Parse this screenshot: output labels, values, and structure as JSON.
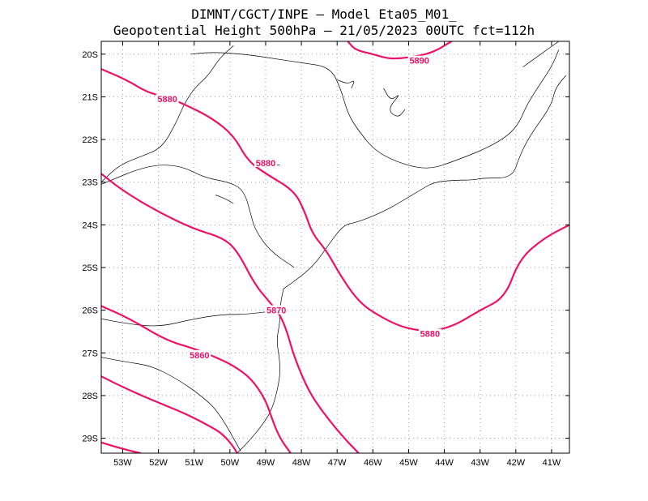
{
  "title": {
    "line1": "DIMNT/CGCT/INPE –   Model Eta05_M01_",
    "line2": "Geopotential Height 500hPa –  21/05/2023 00UTC fct=112h"
  },
  "colors": {
    "contour": "#ee1166",
    "coast": "#000000",
    "grid": "#a0a0a0"
  },
  "axes": {
    "lon_labels": [
      "53W",
      "52W",
      "51W",
      "50W",
      "49W",
      "48W",
      "47W",
      "46W",
      "45W",
      "44W",
      "43W",
      "42W",
      "41W"
    ],
    "lat_labels": [
      "20S",
      "21S",
      "22S",
      "23S",
      "24S",
      "25S",
      "26S",
      "27S",
      "28S",
      "29S"
    ]
  },
  "contour_labels": [
    {
      "text": "5880",
      "value": 5880
    },
    {
      "text": "5880",
      "value": 5880
    },
    {
      "text": "5890",
      "value": 5890
    },
    {
      "text": "5870",
      "value": 5870
    },
    {
      "text": "5880",
      "value": 5880
    },
    {
      "text": "5860",
      "value": 5860
    }
  ],
  "map_data": {
    "lon_range": [
      -53.6,
      -40.5
    ],
    "lat_range": [
      -29.35,
      -19.7
    ],
    "grid": true,
    "contours": [
      {
        "level": 5880,
        "points": [
          [
            -53.6,
            -20.35
          ],
          [
            -52.9,
            -20.6
          ],
          [
            -52.3,
            -20.9
          ],
          [
            -51.8,
            -21.0
          ],
          [
            -51.2,
            -21.2
          ],
          [
            -50.5,
            -21.5
          ],
          [
            -49.9,
            -21.9
          ],
          [
            -49.5,
            -22.5
          ],
          [
            -49.0,
            -22.8
          ],
          [
            -48.2,
            -23.2
          ],
          [
            -47.9,
            -23.7
          ],
          [
            -47.7,
            -24.2
          ],
          [
            -47.3,
            -24.6
          ],
          [
            -46.9,
            -25.2
          ],
          [
            -46.4,
            -25.8
          ],
          [
            -45.9,
            -26.1
          ],
          [
            -45.2,
            -26.4
          ],
          [
            -44.5,
            -26.5
          ],
          [
            -43.8,
            -26.4
          ],
          [
            -43.0,
            -26.0
          ],
          [
            -42.3,
            -25.7
          ],
          [
            -41.9,
            -24.8
          ],
          [
            -41.2,
            -24.3
          ],
          [
            -40.5,
            -24.0
          ]
        ]
      },
      {
        "level": 5890,
        "points": [
          [
            -46.7,
            -19.7
          ],
          [
            -46.5,
            -19.9
          ],
          [
            -46.0,
            -20.0
          ],
          [
            -45.6,
            -20.1
          ],
          [
            -45.2,
            -20.1
          ],
          [
            -44.8,
            -20.05
          ],
          [
            -44.5,
            -20.0
          ],
          [
            -44.2,
            -19.9
          ],
          [
            -44.0,
            -19.8
          ],
          [
            -43.8,
            -19.7
          ]
        ]
      },
      {
        "level": 5870,
        "points": [
          [
            -53.6,
            -22.8
          ],
          [
            -53.0,
            -23.2
          ],
          [
            -52.0,
            -23.7
          ],
          [
            -51.0,
            -24.1
          ],
          [
            -50.2,
            -24.3
          ],
          [
            -49.8,
            -24.6
          ],
          [
            -49.3,
            -25.4
          ],
          [
            -48.9,
            -25.8
          ],
          [
            -48.6,
            -26.1
          ],
          [
            -48.4,
            -26.5
          ],
          [
            -48.2,
            -27.1
          ],
          [
            -47.8,
            -27.9
          ],
          [
            -47.3,
            -28.5
          ],
          [
            -46.8,
            -29.0
          ],
          [
            -46.4,
            -29.35
          ]
        ]
      },
      {
        "level": 5860,
        "points": [
          [
            -53.6,
            -25.9
          ],
          [
            -52.8,
            -26.2
          ],
          [
            -51.8,
            -26.7
          ],
          [
            -51.0,
            -26.9
          ],
          [
            -50.4,
            -27.1
          ],
          [
            -49.9,
            -27.3
          ],
          [
            -49.4,
            -27.6
          ],
          [
            -49.0,
            -28.1
          ],
          [
            -48.8,
            -28.6
          ],
          [
            -48.6,
            -29.0
          ],
          [
            -48.3,
            -29.35
          ]
        ]
      },
      {
        "level": 5860,
        "points": [
          [
            -53.6,
            -27.55
          ],
          [
            -53.0,
            -27.8
          ],
          [
            -52.2,
            -28.1
          ],
          [
            -51.3,
            -28.4
          ],
          [
            -50.6,
            -28.7
          ],
          [
            -50.2,
            -28.9
          ],
          [
            -49.9,
            -29.2
          ],
          [
            -49.8,
            -29.35
          ]
        ]
      },
      {
        "level": 5860,
        "points": [
          [
            -53.6,
            -29.1
          ],
          [
            -53.0,
            -29.25
          ],
          [
            -52.5,
            -29.35
          ]
        ]
      }
    ],
    "coastlines": [
      {
        "name": "coast-sp-rj-es",
        "points": [
          [
            -48.5,
            -25.5
          ],
          [
            -48.0,
            -25.2
          ],
          [
            -47.6,
            -24.9
          ],
          [
            -47.1,
            -24.3
          ],
          [
            -46.8,
            -24.0
          ],
          [
            -46.5,
            -23.95
          ],
          [
            -46.0,
            -23.8
          ],
          [
            -45.5,
            -23.6
          ],
          [
            -45.1,
            -23.4
          ],
          [
            -44.7,
            -23.2
          ],
          [
            -44.3,
            -23.0
          ],
          [
            -43.7,
            -22.95
          ],
          [
            -43.2,
            -22.95
          ],
          [
            -42.9,
            -22.9
          ],
          [
            -42.1,
            -22.9
          ],
          [
            -41.9,
            -22.4
          ],
          [
            -41.6,
            -21.9
          ],
          [
            -41.0,
            -21.2
          ],
          [
            -40.9,
            -20.8
          ],
          [
            -40.6,
            -20.5
          ]
        ]
      },
      {
        "name": "coast-pr-sc-rs",
        "points": [
          [
            -48.5,
            -25.5
          ],
          [
            -48.6,
            -25.9
          ],
          [
            -48.6,
            -26.3
          ],
          [
            -48.7,
            -26.7
          ],
          [
            -48.6,
            -27.2
          ],
          [
            -48.6,
            -27.6
          ],
          [
            -48.8,
            -28.3
          ],
          [
            -49.1,
            -28.7
          ],
          [
            -49.5,
            -29.1
          ],
          [
            -49.8,
            -29.35
          ]
        ]
      },
      {
        "name": "border-west-1",
        "points": [
          [
            -53.6,
            -23.0
          ],
          [
            -53.1,
            -22.6
          ],
          [
            -52.5,
            -22.4
          ],
          [
            -51.9,
            -22.2
          ],
          [
            -51.5,
            -21.6
          ],
          [
            -51.3,
            -21.2
          ],
          [
            -51.0,
            -20.8
          ],
          [
            -50.6,
            -20.5
          ],
          [
            -50.3,
            -20.1
          ],
          [
            -49.9,
            -19.8
          ]
        ]
      },
      {
        "name": "border-pr-sp",
        "points": [
          [
            -53.6,
            -23.05
          ],
          [
            -52.3,
            -22.6
          ],
          [
            -51.4,
            -22.6
          ],
          [
            -50.7,
            -22.9
          ],
          [
            -50.0,
            -23.0
          ],
          [
            -49.6,
            -23.2
          ],
          [
            -49.4,
            -23.8
          ],
          [
            -49.3,
            -24.1
          ],
          [
            -48.9,
            -24.6
          ],
          [
            -48.2,
            -25.0
          ]
        ]
      },
      {
        "name": "border-pr-sc",
        "points": [
          [
            -53.6,
            -26.2
          ],
          [
            -53.0,
            -26.3
          ],
          [
            -52.0,
            -26.4
          ],
          [
            -51.0,
            -26.2
          ],
          [
            -50.2,
            -26.1
          ],
          [
            -49.6,
            -26.1
          ],
          [
            -48.6,
            -26.0
          ]
        ]
      },
      {
        "name": "border-sc-rs",
        "points": [
          [
            -53.6,
            -27.1
          ],
          [
            -53.0,
            -27.2
          ],
          [
            -52.2,
            -27.3
          ],
          [
            -51.5,
            -27.6
          ],
          [
            -50.8,
            -28.0
          ],
          [
            -50.3,
            -28.4
          ],
          [
            -49.7,
            -29.3
          ]
        ]
      },
      {
        "name": "border-mg-sp",
        "points": [
          [
            -51.1,
            -20.0
          ],
          [
            -50.5,
            -19.95
          ],
          [
            -49.6,
            -20.0
          ],
          [
            -48.8,
            -20.1
          ],
          [
            -48.0,
            -20.2
          ],
          [
            -47.2,
            -20.3
          ],
          [
            -46.9,
            -20.8
          ],
          [
            -46.7,
            -21.4
          ],
          [
            -46.4,
            -21.8
          ],
          [
            -45.9,
            -22.3
          ],
          [
            -45.1,
            -22.6
          ],
          [
            -44.4,
            -22.7
          ],
          [
            -43.7,
            -22.5
          ],
          [
            -42.8,
            -22.2
          ],
          [
            -42.2,
            -21.9
          ],
          [
            -41.9,
            -21.6
          ],
          [
            -41.7,
            -21.2
          ],
          [
            -41.4,
            -20.8
          ],
          [
            -41.0,
            -20.3
          ],
          [
            -40.8,
            -19.9
          ]
        ]
      },
      {
        "name": "border-mg-east",
        "points": [
          [
            -40.8,
            -19.7
          ],
          [
            -41.3,
            -20.0
          ],
          [
            -41.8,
            -20.3
          ]
        ]
      },
      {
        "name": "lake-1",
        "points": [
          [
            -47.0,
            -20.6
          ],
          [
            -46.7,
            -20.7
          ],
          [
            -46.5,
            -20.6
          ],
          [
            -46.6,
            -20.8
          ]
        ]
      },
      {
        "name": "lake-2",
        "points": [
          [
            -45.7,
            -20.8
          ],
          [
            -45.5,
            -21.1
          ],
          [
            -45.2,
            -20.9
          ],
          [
            -45.6,
            -21.3
          ],
          [
            -45.3,
            -21.5
          ],
          [
            -45.1,
            -21.3
          ]
        ]
      },
      {
        "name": "lake-3",
        "points": [
          [
            -49.2,
            -22.5
          ],
          [
            -48.8,
            -22.6
          ],
          [
            -48.6,
            -22.6
          ]
        ]
      },
      {
        "name": "lake-4",
        "points": [
          [
            -50.4,
            -23.3
          ],
          [
            -50.1,
            -23.4
          ],
          [
            -49.9,
            -23.5
          ]
        ]
      }
    ]
  }
}
